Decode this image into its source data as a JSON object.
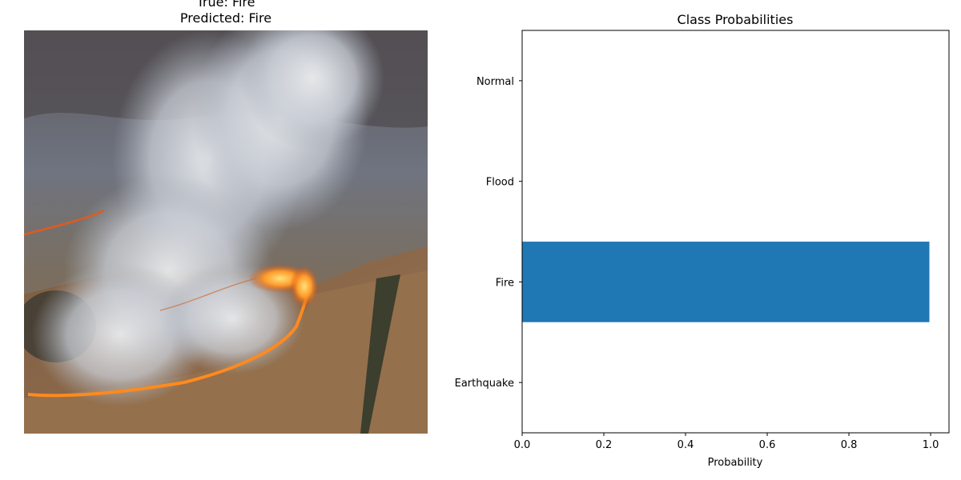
{
  "left_panel": {
    "title_line1": "True: Fire",
    "title_line2": "Predicted: Fire",
    "image_subject": "aerial photo of a wildfire with smoke plumes over dry grassland"
  },
  "chart_data": {
    "type": "bar",
    "orientation": "horizontal",
    "title": "Class Probabilities",
    "categories": [
      "Earthquake",
      "Fire",
      "Flood",
      "Normal"
    ],
    "values": [
      0.0,
      0.997,
      0.0,
      0.0
    ],
    "xlabel": "Probability",
    "ylabel": "",
    "xlim": [
      0,
      1.045
    ],
    "xticks": [
      "0.0",
      "0.2",
      "0.4",
      "0.6",
      "0.8",
      "1.0"
    ],
    "bar_color": "#1f77b4",
    "grid": false
  }
}
